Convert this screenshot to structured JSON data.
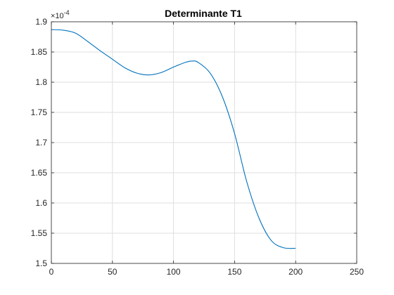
{
  "chart_data": {
    "type": "line",
    "title": "Determinante T1",
    "xlabel": "",
    "ylabel": "",
    "xlim": [
      0,
      250
    ],
    "ylim": [
      1.5,
      1.9
    ],
    "y_exponent_label": "10",
    "y_exponent_power": "-4",
    "y_exponent_prefix": "×",
    "grid": true,
    "xticks": [
      0,
      50,
      100,
      150,
      200,
      250
    ],
    "xtick_labels": [
      "0",
      "50",
      "100",
      "150",
      "200",
      "250"
    ],
    "yticks": [
      1.5,
      1.55,
      1.6,
      1.65,
      1.7,
      1.75,
      1.8,
      1.85,
      1.9
    ],
    "ytick_labels": [
      "1.5",
      "1.55",
      "1.6",
      "1.65",
      "1.7",
      "1.75",
      "1.8",
      "1.85",
      "1.9"
    ],
    "series": [
      {
        "color": "#0072BD",
        "x": [
          0,
          10,
          20,
          30,
          40,
          50,
          60,
          70,
          80,
          90,
          100,
          110,
          115,
          120,
          130,
          140,
          150,
          160,
          170,
          180,
          190,
          200
        ],
        "y": [
          1.887,
          1.886,
          1.881,
          1.867,
          1.852,
          1.838,
          1.824,
          1.815,
          1.812,
          1.816,
          1.825,
          1.833,
          1.835,
          1.833,
          1.815,
          1.776,
          1.715,
          1.635,
          1.575,
          1.538,
          1.526,
          1.525
        ]
      }
    ]
  }
}
